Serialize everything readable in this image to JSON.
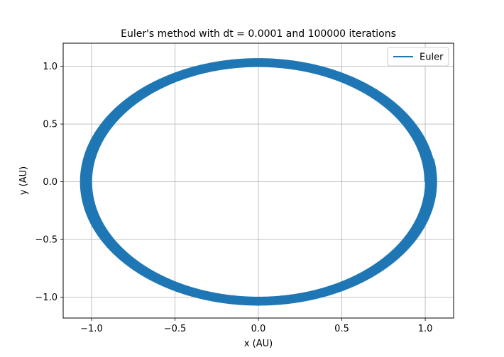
{
  "chart_data": {
    "type": "line",
    "title": "Euler's method with dt = 0.0001 and 100000 iterations",
    "xlabel": "x (AU)",
    "ylabel": "y (AU)",
    "xlim": [
      -1.17,
      1.17
    ],
    "ylim": [
      -1.18,
      1.2
    ],
    "x_ticks": [
      -1.0,
      -0.5,
      0.0,
      0.5,
      1.0
    ],
    "x_tick_labels": [
      "−1.0",
      "−0.5",
      "0.0",
      "0.5",
      "1.0"
    ],
    "y_ticks": [
      -1.0,
      -0.5,
      0.0,
      0.5,
      1.0
    ],
    "y_tick_labels": [
      "−1.0",
      "−0.5",
      "0.0",
      "0.5",
      "1.0"
    ],
    "grid": true,
    "legend_position": "top-right",
    "series": [
      {
        "name": "Euler",
        "color": "#1f77b4",
        "description_points": {
          "start": [
            1.0,
            0.0
          ],
          "end": [
            -1.05,
            0.2
          ],
          "x_range": [
            -1.07,
            1.07
          ],
          "y_range": [
            -1.07,
            1.07
          ]
        }
      }
    ]
  }
}
